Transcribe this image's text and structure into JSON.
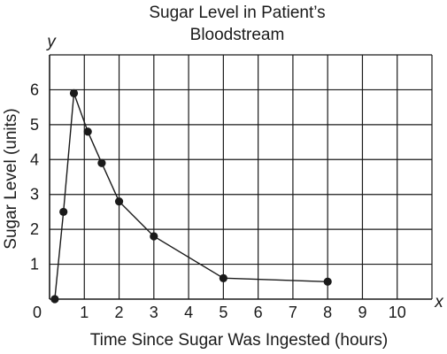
{
  "chart_data": {
    "type": "line",
    "title_lines": [
      "Sugar Level in Patient’s",
      "Bloodstream"
    ],
    "xlabel": "Time Since Sugar Was Ingested (hours)",
    "ylabel": "Sugar Level (units)",
    "x_var": "x",
    "y_var": "y",
    "xlim": [
      0,
      11
    ],
    "ylim": [
      0,
      7
    ],
    "x_ticks": [
      0,
      1,
      2,
      3,
      4,
      5,
      6,
      7,
      8,
      9,
      10
    ],
    "y_ticks": [
      1,
      2,
      3,
      4,
      5,
      6
    ],
    "grid": true,
    "series": [
      {
        "x": [
          0.4,
          0.7,
          1.1,
          1.5,
          2.0,
          3.0,
          5.0,
          8.0
        ],
        "y": [
          2.5,
          5.9,
          4.8,
          3.9,
          2.8,
          1.8,
          0.6,
          0.5
        ]
      }
    ],
    "x_start_point": [
      0.15,
      0.0
    ]
  }
}
